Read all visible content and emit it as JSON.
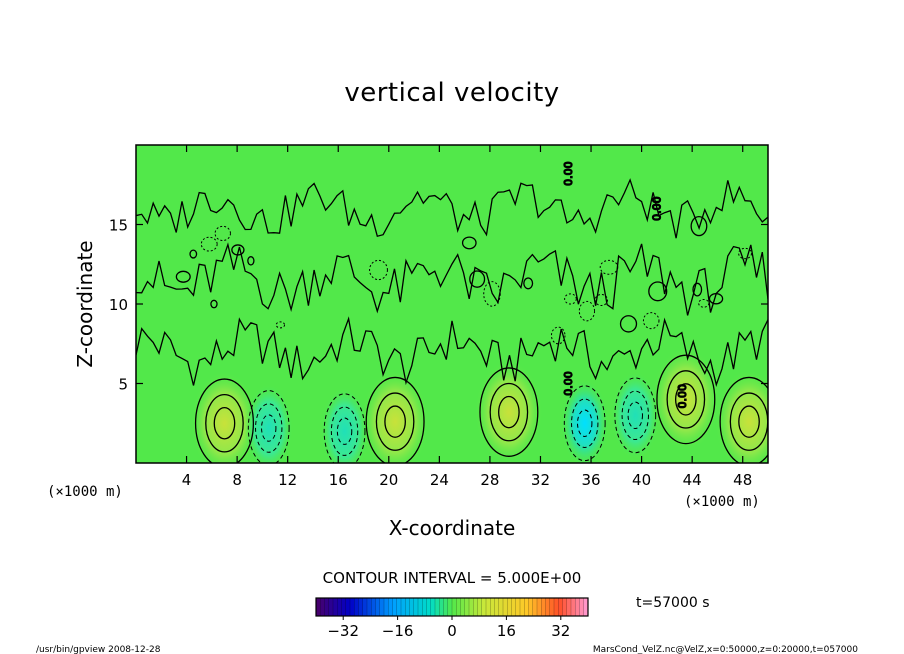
{
  "chart_data": {
    "type": "heatmap",
    "title": "vertical velocity",
    "xlabel": "X-coordinate",
    "ylabel": "Z-coordinate",
    "x_unit": "(×1000 m)",
    "y_unit": "(×1000 m)",
    "x_ticks": [
      4,
      8,
      12,
      16,
      20,
      24,
      28,
      32,
      36,
      40,
      44,
      48
    ],
    "y_ticks": [
      5,
      10,
      15
    ],
    "xlim": [
      0,
      50
    ],
    "ylim": [
      0,
      20
    ],
    "contour_interval": "CONTOUR INTERVAL = 5.000E+00",
    "contour_labels": [
      "0.00",
      "0.00",
      "0.00",
      "0.00"
    ],
    "colorbar": {
      "range": [
        -40,
        40
      ],
      "ticks": [
        -32,
        -16,
        0,
        16,
        32
      ],
      "tick_labels": [
        "−32",
        "−16",
        "0",
        "16",
        "32"
      ]
    },
    "features": [
      {
        "x": 7,
        "z": 2.5,
        "sign": "positive"
      },
      {
        "x": 10.5,
        "z": 2.2,
        "sign": "negative"
      },
      {
        "x": 16.5,
        "z": 2.0,
        "sign": "negative"
      },
      {
        "x": 20.5,
        "z": 2.6,
        "sign": "positive"
      },
      {
        "x": 29.5,
        "z": 3.2,
        "sign": "positive"
      },
      {
        "x": 35.5,
        "z": 2.5,
        "sign": "negative"
      },
      {
        "x": 39.5,
        "z": 3.0,
        "sign": "negative"
      },
      {
        "x": 43.5,
        "z": 4.0,
        "sign": "positive"
      },
      {
        "x": 48.5,
        "z": 2.6,
        "sign": "positive"
      }
    ]
  },
  "time_label": "t=57000 s",
  "footer_left": "/usr/bin/gpview  2008-12-28",
  "footer_right": "MarsCond_VelZ.nc@VelZ,x=0:50000,z=0:20000,t=057000",
  "colors": {
    "field": "#52e84a",
    "positive": "#c8e83a",
    "negative": "#28e0a8",
    "strong_negative": "#00e8ff"
  }
}
